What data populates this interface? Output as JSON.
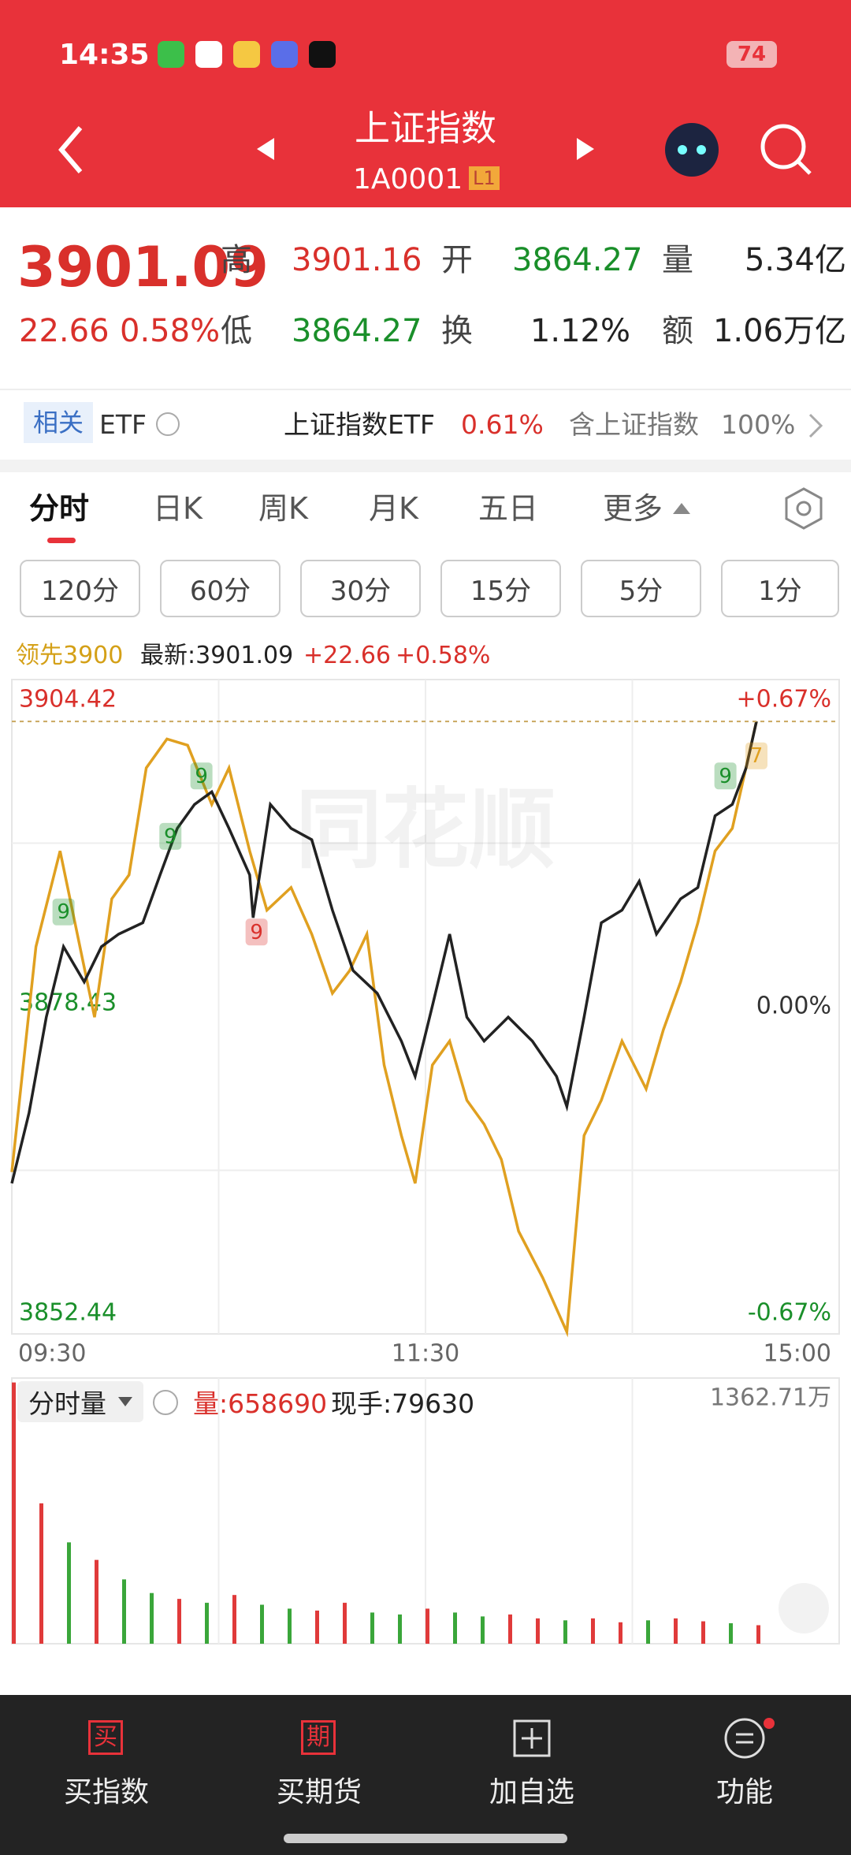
{
  "status_bar": {
    "time": "14:35",
    "battery": "74"
  },
  "header": {
    "title": "上证指数",
    "code": "1A0001",
    "level": "L1"
  },
  "quote": {
    "price": "3901.09",
    "change": "22.66",
    "change_pct": "0.58%",
    "stats": [
      {
        "label": "高",
        "value": "3901.16"
      },
      {
        "label": "开",
        "value": "3864.27"
      },
      {
        "label": "量",
        "value": "5.34亿"
      },
      {
        "label": "低",
        "value": "3864.27"
      },
      {
        "label": "换",
        "value": "1.12%"
      },
      {
        "label": "额",
        "value": "1.06万亿"
      }
    ]
  },
  "etf": {
    "tag": "相关",
    "label": "ETF",
    "name": "上证指数ETF",
    "pct": "0.61%",
    "note": "含上证指数",
    "weight": "100%"
  },
  "tabs": [
    "分时",
    "日K",
    "周K",
    "月K",
    "五日",
    "更多"
  ],
  "periods": [
    "120分",
    "60分",
    "30分",
    "15分",
    "5分",
    "1分"
  ],
  "bottom_nav": [
    {
      "icon": "买",
      "label": "买指数"
    },
    {
      "label": "买期货",
      "icon": "期"
    },
    {
      "label": "加自选"
    },
    {
      "label": "功能"
    }
  ],
  "chart_data": [
    {
      "type": "line",
      "watermark": "同花顺",
      "legend": {
        "lead": "领先3900",
        "latest": "最新:3901.09",
        "change": "+22.66",
        "pct": "+0.58%"
      },
      "xlim": [
        0,
        240
      ],
      "xticks": [
        {
          "value": 0,
          "label": "09:30"
        },
        {
          "value": 120,
          "label": "11:30"
        },
        {
          "value": 240,
          "label": "15:00"
        }
      ],
      "ylim": [
        3852.44,
        3904.42
      ],
      "yticks": [
        3852.44,
        3878.43,
        3904.42
      ],
      "y2lim": [
        -0.67,
        0.67
      ],
      "y2ticks": [
        {
          "value": -0.67,
          "label": "-0.67%"
        },
        {
          "value": 0,
          "label": "0.00%"
        },
        {
          "value": 0.67,
          "label": "+0.67%"
        }
      ],
      "series": [
        {
          "color": "#222222",
          "x": [
            0,
            5,
            10,
            15,
            21,
            26,
            31,
            38,
            43,
            48,
            53,
            58,
            63,
            69,
            70,
            75,
            81,
            87,
            93,
            99,
            106,
            113,
            117,
            122,
            127,
            132,
            137,
            144,
            151,
            158,
            161,
            166,
            171,
            177,
            182,
            187,
            194,
            199,
            204,
            209,
            213,
            216
          ],
          "values": [
            3864.4,
            3870.0,
            3877.6,
            3883.2,
            3880.4,
            3883.2,
            3884.2,
            3885.1,
            3888.9,
            3892.6,
            3894.5,
            3895.5,
            3892.6,
            3888.9,
            3885.5,
            3894.5,
            3892.6,
            3891.7,
            3886.1,
            3881.3,
            3879.5,
            3875.7,
            3872.9,
            3878.5,
            3884.2,
            3877.6,
            3875.7,
            3877.6,
            3875.7,
            3872.9,
            3870.5,
            3877.6,
            3885.1,
            3886.1,
            3888.4,
            3884.2,
            3887.0,
            3887.9,
            3893.6,
            3894.5,
            3897.4,
            3901.09
          ]
        },
        {
          "color": "#e0a020",
          "x": [
            0,
            7,
            14,
            19,
            24,
            29,
            34,
            39,
            45,
            51,
            58,
            63,
            69,
            74,
            81,
            87,
            93,
            98,
            103,
            108,
            113,
            117,
            122,
            127,
            132,
            137,
            142,
            147,
            154,
            161,
            166,
            171,
            177,
            184,
            189,
            194,
            199,
            204,
            209,
            216
          ],
          "values": [
            3865.3,
            3883.2,
            3890.8,
            3884.2,
            3877.6,
            3887.0,
            3888.9,
            3897.4,
            3899.7,
            3899.2,
            3894.5,
            3897.4,
            3890.8,
            3886.1,
            3887.9,
            3884.2,
            3879.5,
            3881.3,
            3884.2,
            3873.8,
            3868.2,
            3864.4,
            3873.8,
            3875.7,
            3871.0,
            3869.1,
            3866.3,
            3860.6,
            3856.9,
            3852.6,
            3868.2,
            3871.0,
            3875.7,
            3871.9,
            3876.6,
            3880.4,
            3885.1,
            3890.8,
            3892.6,
            3901.1
          ]
        }
      ],
      "annotations": [
        {
          "text": "9",
          "x": 15,
          "y": 3885.9,
          "color": "#1a8f2a"
        },
        {
          "text": "9",
          "x": 46,
          "y": 3891.9,
          "color": "#1a8f2a"
        },
        {
          "text": "9",
          "x": 55,
          "y": 3896.7,
          "color": "#1a8f2a"
        },
        {
          "text": "9",
          "x": 71,
          "y": 3884.3,
          "color": "#d9302b"
        },
        {
          "text": "9",
          "x": 207,
          "y": 3896.7,
          "color": "#1a8f2a"
        },
        {
          "text": "7",
          "x": 216,
          "y": 3898.3,
          "color": "#e0a020"
        }
      ]
    },
    {
      "type": "bar",
      "title": "分时量",
      "volume_label": "量:658690",
      "hand_label": "现手:79630",
      "xlim": [
        0,
        240
      ],
      "ylim": [
        0,
        1362.71
      ],
      "yticks": [
        {
          "value": 1362.71,
          "label": "1362.71万"
        }
      ],
      "x": [
        0,
        8,
        16,
        24,
        32,
        40,
        48,
        56,
        64,
        72,
        80,
        88,
        96,
        104,
        112,
        120,
        128,
        136,
        144,
        152,
        160,
        168,
        176,
        184,
        192,
        200,
        208,
        216
      ],
      "values": [
        1340,
        720,
        520,
        430,
        330,
        260,
        230,
        210,
        250,
        200,
        180,
        170,
        210,
        160,
        150,
        180,
        160,
        140,
        150,
        130,
        120,
        130,
        110,
        120,
        130,
        115,
        105,
        95
      ],
      "colors": [
        "#e03a3a",
        "#e03a3a",
        "#3aa63a",
        "#e03a3a",
        "#3aa63a",
        "#3aa63a",
        "#e03a3a",
        "#3aa63a",
        "#e03a3a",
        "#3aa63a",
        "#3aa63a",
        "#e03a3a",
        "#e03a3a",
        "#3aa63a",
        "#3aa63a",
        "#e03a3a",
        "#3aa63a",
        "#3aa63a",
        "#e03a3a",
        "#e03a3a",
        "#3aa63a",
        "#e03a3a",
        "#e03a3a",
        "#3aa63a",
        "#e03a3a",
        "#e03a3a",
        "#3aa63a",
        "#e03a3a"
      ]
    }
  ]
}
